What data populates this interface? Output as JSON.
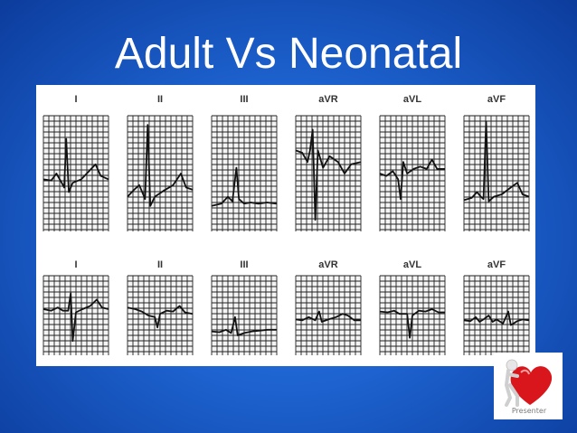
{
  "slide": {
    "title": "Adult Vs Neonatal"
  },
  "ecg": {
    "rows": [
      {
        "row_id": "adult",
        "leads": [
          {
            "label": "I"
          },
          {
            "label": "II"
          },
          {
            "label": "III"
          },
          {
            "label": "aVR"
          },
          {
            "label": "aVL"
          },
          {
            "label": "aVF"
          }
        ]
      },
      {
        "row_id": "neonatal",
        "leads": [
          {
            "label": "I"
          },
          {
            "label": "II"
          },
          {
            "label": "III"
          },
          {
            "label": "aVR"
          },
          {
            "label": "aVL"
          },
          {
            "label": "aVF"
          }
        ]
      }
    ],
    "colors": {
      "grid": "#222222",
      "trace": "#111111",
      "label": "#333333"
    }
  },
  "logo": {
    "text": "Presenter",
    "icon": "heart-mascot-icon",
    "colors": {
      "heart": "#d9161c",
      "figure": "#e6e6e6"
    }
  }
}
